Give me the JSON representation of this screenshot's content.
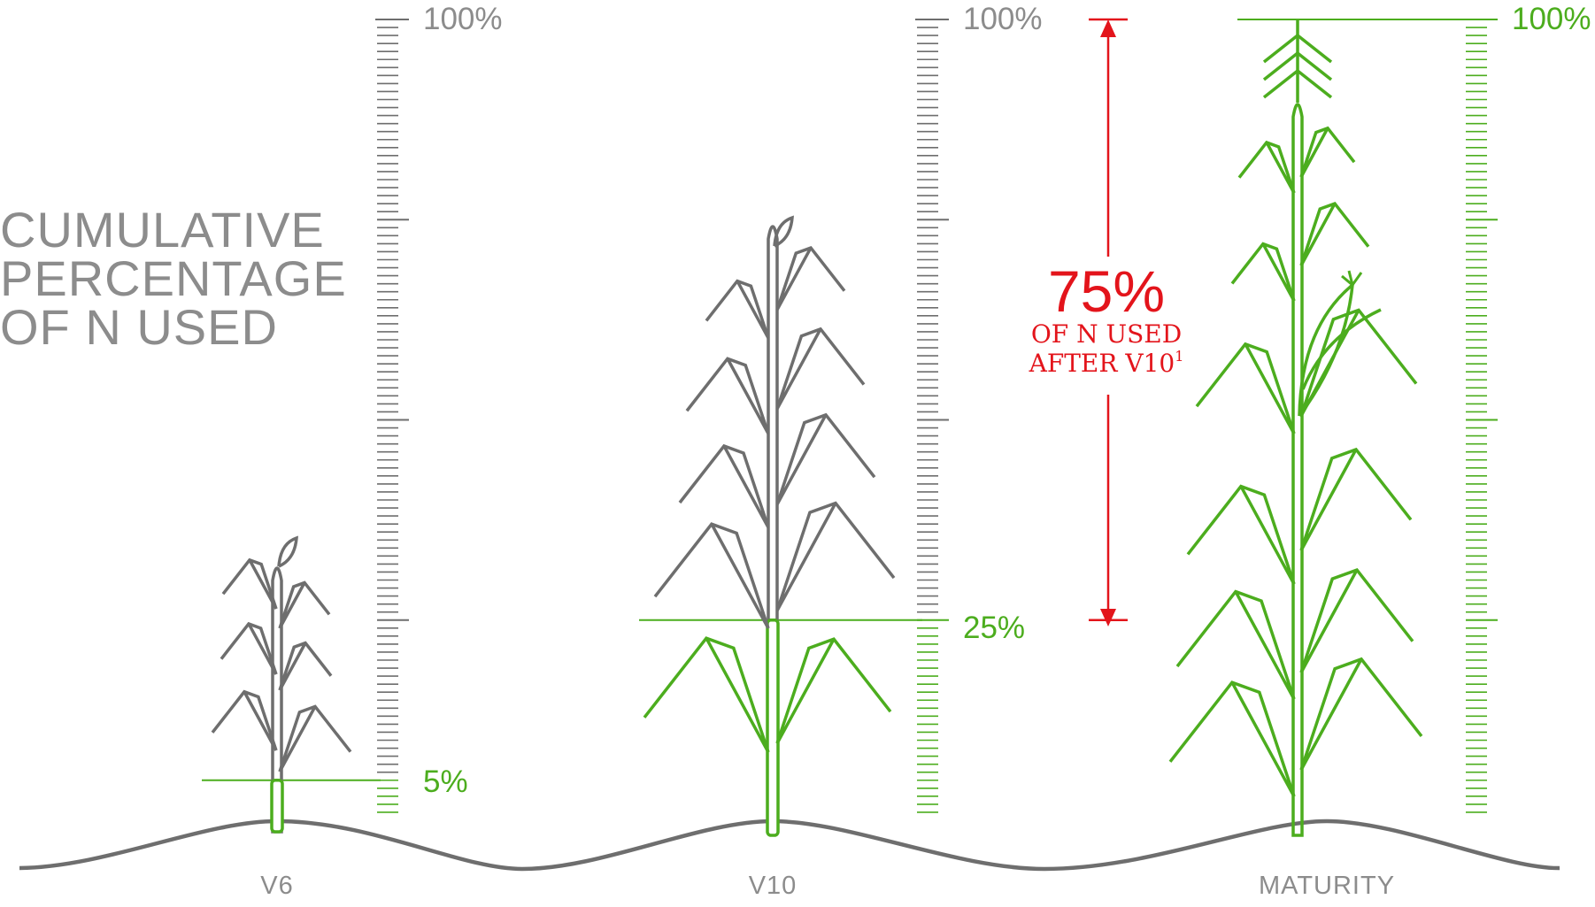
{
  "title_lines": [
    "CUMULATIVE",
    "PERCENTAGE",
    "OF N USED"
  ],
  "stages": [
    {
      "label": "V6",
      "top_label": "100%",
      "marker_label": "5%",
      "n_used_percent": 5
    },
    {
      "label": "V10",
      "top_label": "100%",
      "marker_label": "25%",
      "n_used_percent": 25
    },
    {
      "label": "MATURITY",
      "top_label": "100%",
      "marker_label": "",
      "n_used_percent": 100
    }
  ],
  "annotation": {
    "percent": "75%",
    "line1": "OF N USED",
    "line2": "AFTER V10",
    "footnote": "1"
  },
  "colors": {
    "gray": "#6e6e6e",
    "label_gray": "#8c8c8c",
    "green": "#4cad1e",
    "red": "#e3141b"
  }
}
